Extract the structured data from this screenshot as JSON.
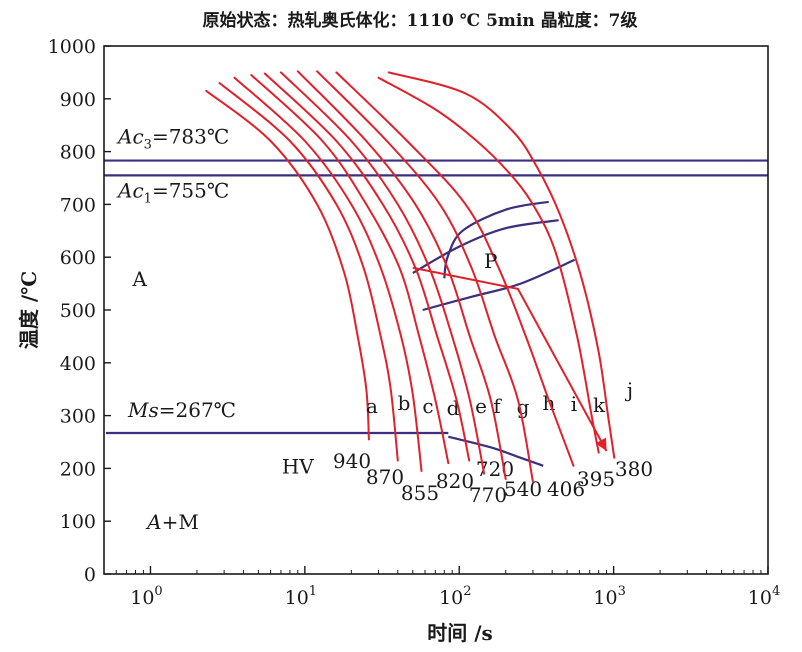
{
  "chart_data": {
    "type": "line",
    "title": "原始状态：热轧奥氏体化：1110 ℃  5min  晶粒度：7级",
    "xlabel": "时间 /s",
    "ylabel": "温度 /℃",
    "x_scale": "log",
    "xlim": [
      0.5,
      10000
    ],
    "ylim": [
      0,
      1000
    ],
    "x_ticks": [
      {
        "value": 1,
        "base": "10",
        "exp": "0"
      },
      {
        "value": 10,
        "base": "10",
        "exp": "1"
      },
      {
        "value": 100,
        "base": "10",
        "exp": "2"
      },
      {
        "value": 1000,
        "base": "10",
        "exp": "3"
      },
      {
        "value": 10000,
        "base": "10",
        "exp": "4"
      }
    ],
    "y_ticks": [
      "0",
      "100",
      "200",
      "300",
      "400",
      "500",
      "600",
      "700",
      "800",
      "900",
      "1000"
    ],
    "grid": false,
    "colors": {
      "cooling": "#e0202a",
      "boundary": "#3b2f7e",
      "text": "#1a1a1a"
    },
    "reference_lines": [
      {
        "y": 783,
        "label_main": "Ac",
        "label_sub": "3",
        "label_value": "=783℃"
      },
      {
        "y": 755,
        "label_main": "Ac",
        "label_sub": "1",
        "label_value": "=755℃"
      },
      {
        "y": 267,
        "label_main": "Ms",
        "label_sub": "",
        "label_value": "=267℃"
      }
    ],
    "cooling_curves": [
      {
        "id": "a",
        "hv": "940",
        "points": [
          [
            2.3,
            915
          ],
          [
            6,
            820
          ],
          [
            12,
            700
          ],
          [
            18,
            570
          ],
          [
            22,
            450
          ],
          [
            25,
            350
          ],
          [
            26,
            255
          ]
        ]
      },
      {
        "id": "b",
        "hv": "870",
        "points": [
          [
            2.8,
            930
          ],
          [
            8,
            820
          ],
          [
            16,
            700
          ],
          [
            24,
            580
          ],
          [
            31,
            450
          ],
          [
            36,
            350
          ],
          [
            40,
            215
          ]
        ]
      },
      {
        "id": "c",
        "hv": "855",
        "points": [
          [
            3.5,
            940
          ],
          [
            10,
            820
          ],
          [
            20,
            700
          ],
          [
            31,
            580
          ],
          [
            42,
            450
          ],
          [
            50,
            340
          ],
          [
            57,
            195
          ]
        ]
      },
      {
        "id": "d",
        "hv": "820",
        "points": [
          [
            4.5,
            945
          ],
          [
            13,
            820
          ],
          [
            25,
            700
          ],
          [
            41,
            580
          ],
          [
            55,
            450
          ],
          [
            70,
            330
          ],
          [
            85,
            210
          ]
        ]
      },
      {
        "id": "e",
        "hv": "720",
        "points": [
          [
            5.5,
            948
          ],
          [
            16,
            820
          ],
          [
            32,
            700
          ],
          [
            52,
            580
          ],
          [
            72,
            450
          ],
          [
            96,
            330
          ],
          [
            116,
            215
          ]
        ]
      },
      {
        "id": "f",
        "hv": "770",
        "points": [
          [
            7,
            950
          ],
          [
            20,
            820
          ],
          [
            40,
            700
          ],
          [
            64,
            580
          ],
          [
            90,
            450
          ],
          [
            117,
            330
          ],
          [
            145,
            190
          ]
        ]
      },
      {
        "id": "g",
        "hv": "540",
        "points": [
          [
            9,
            952
          ],
          [
            25,
            820
          ],
          [
            52,
            700
          ],
          [
            84,
            580
          ],
          [
            117,
            450
          ],
          [
            160,
            330
          ],
          [
            200,
            180
          ]
        ]
      },
      {
        "id": "h",
        "hv": "406",
        "points": [
          [
            12,
            952
          ],
          [
            34,
            820
          ],
          [
            75,
            700
          ],
          [
            120,
            580
          ],
          [
            170,
            450
          ],
          [
            240,
            330
          ],
          [
            300,
            175
          ]
        ]
      },
      {
        "id": "i",
        "hv": "395",
        "points": [
          [
            16,
            950
          ],
          [
            46,
            820
          ],
          [
            110,
            700
          ],
          [
            180,
            580
          ],
          [
            270,
            450
          ],
          [
            380,
            330
          ],
          [
            550,
            205
          ]
        ]
      },
      {
        "id": "k",
        "hv": "",
        "points": [
          [
            30,
            940
          ],
          [
            70,
            880
          ],
          [
            130,
            820
          ],
          [
            210,
            760
          ],
          [
            300,
            700
          ],
          [
            420,
            610
          ],
          [
            580,
            450
          ],
          [
            720,
            300
          ],
          [
            800,
            230
          ]
        ]
      },
      {
        "id": "j",
        "hv": "380",
        "points": [
          [
            35,
            950
          ],
          [
            110,
            910
          ],
          [
            220,
            840
          ],
          [
            320,
            770
          ],
          [
            450,
            680
          ],
          [
            620,
            560
          ],
          [
            800,
            420
          ],
          [
            930,
            290
          ],
          [
            1010,
            220
          ]
        ]
      }
    ],
    "region_labels": [
      {
        "text": "A",
        "x": 0.85,
        "y": 545
      },
      {
        "text": "P",
        "x": 160,
        "y": 580
      },
      {
        "text": "HV",
        "x": 9,
        "y": 190
      },
      {
        "text": "A+M",
        "x": 1.4,
        "y": 85
      }
    ],
    "transformation_boundaries": [
      {
        "name": "pearlite-start",
        "points": [
          [
            80,
            560
          ],
          [
            84,
            600
          ],
          [
            105,
            650
          ],
          [
            200,
            690
          ],
          [
            380,
            705
          ]
        ]
      },
      {
        "name": "pearlite-mid",
        "points": [
          [
            50,
            570
          ],
          [
            100,
            620
          ],
          [
            200,
            655
          ],
          [
            440,
            670
          ]
        ]
      },
      {
        "name": "pearlite-finish",
        "points": [
          [
            58,
            500
          ],
          [
            120,
            525
          ],
          [
            250,
            550
          ],
          [
            560,
            595
          ]
        ]
      },
      {
        "name": "martensite-start",
        "points": [
          [
            0.6,
            260
          ],
          [
            85,
            260
          ],
          [
            160,
            240
          ],
          [
            250,
            220
          ],
          [
            350,
            205
          ]
        ]
      }
    ]
  }
}
